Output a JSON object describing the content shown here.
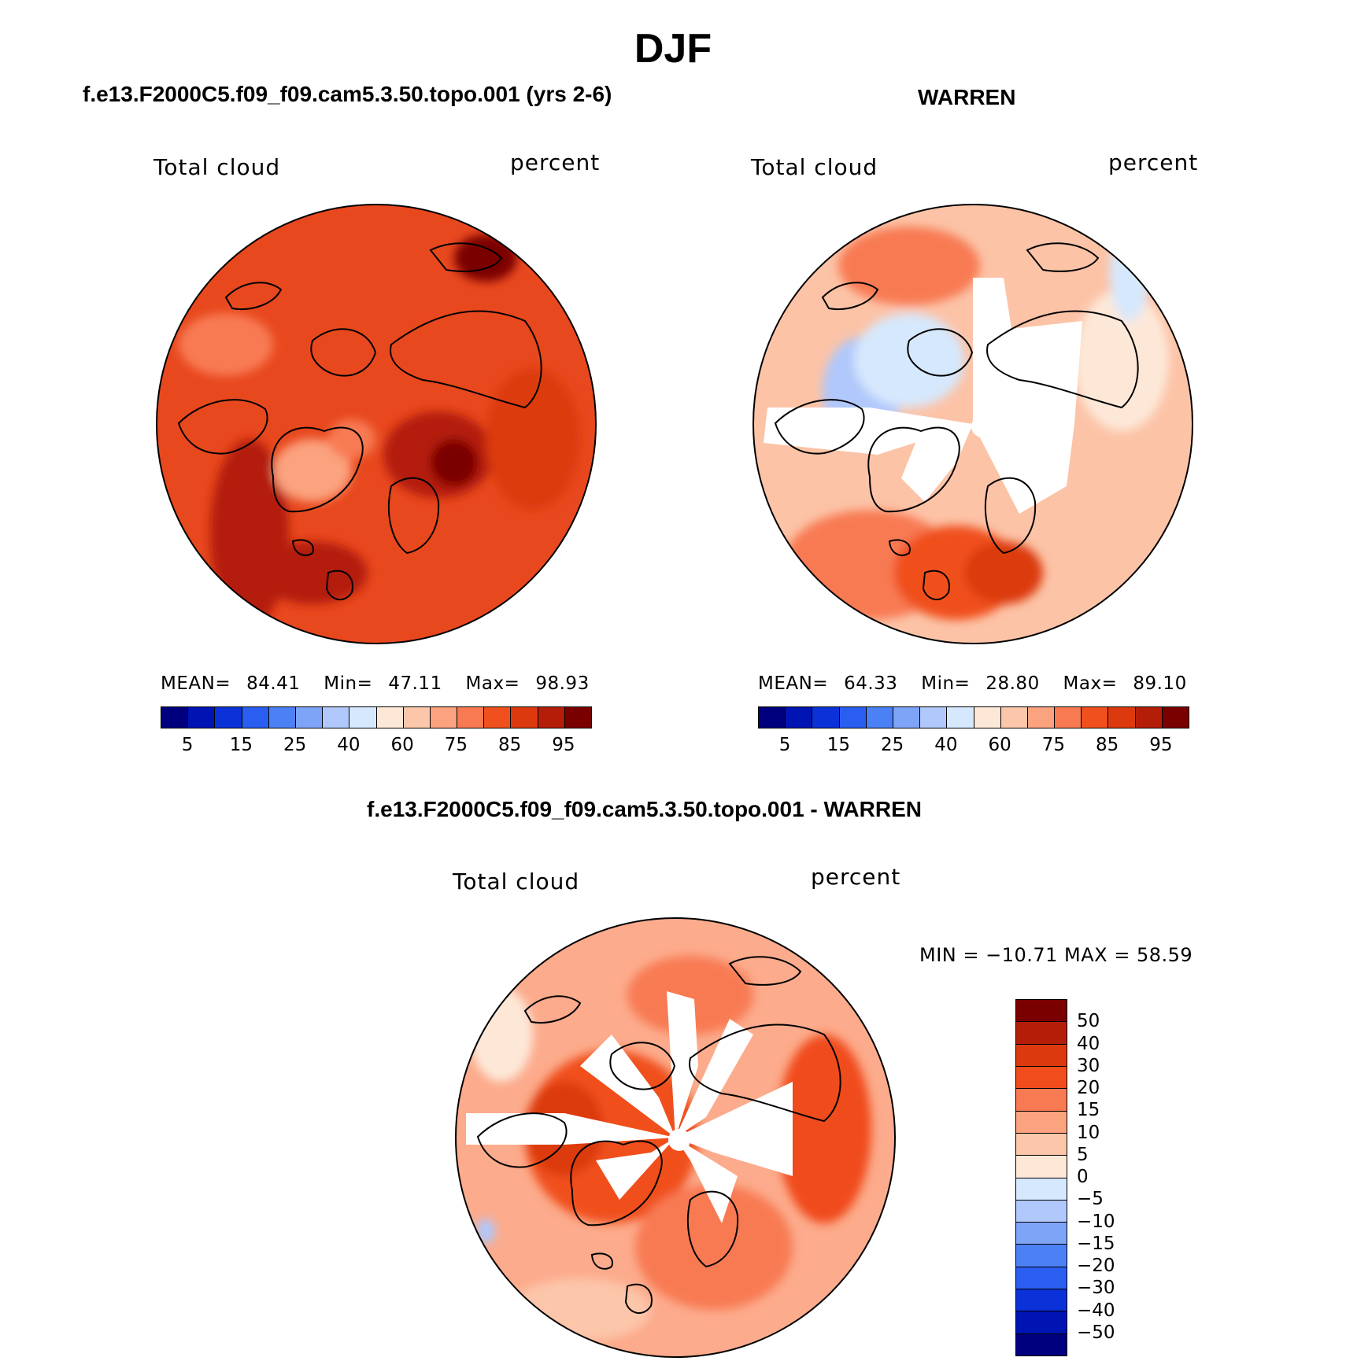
{
  "title": "DJF",
  "panels": [
    {
      "id": "model",
      "title": "f.e13.F2000C5.f09_f09.cam5.3.50.topo.001 (yrs 2-6)",
      "variable": "Total cloud",
      "units": "percent",
      "stats": {
        "mean_label": "MEAN=",
        "mean": "84.41",
        "min_label": "Min=",
        "min": "47.11",
        "max_label": "Max=",
        "max": "98.93"
      },
      "field": {
        "base": "#e8481e",
        "pattern": "model"
      }
    },
    {
      "id": "obs",
      "title": "WARREN",
      "variable": "Total cloud",
      "units": "percent",
      "stats": {
        "mean_label": "MEAN=",
        "mean": "64.33",
        "min_label": "Min=",
        "min": "28.80",
        "max_label": "Max=",
        "max": "89.10"
      },
      "field": {
        "base": "#fcc3a7",
        "pattern": "obs"
      }
    },
    {
      "id": "diff",
      "title": "f.e13.F2000C5.f09_f09.cam5.3.50.topo.001 - WARREN",
      "variable": "Total cloud",
      "units": "percent",
      "stats": {
        "text": "MIN = −10.71 MAX =   58.59"
      },
      "field": {
        "base": "#fcab8c",
        "pattern": "diff"
      }
    }
  ],
  "colorbar_abs": {
    "colors": [
      "#00007f",
      "#0014b4",
      "#0a32d8",
      "#2a5ef0",
      "#4c80f5",
      "#7ea4f8",
      "#b0c8fb",
      "#d6e8fd",
      "#fde8d8",
      "#fcc6aa",
      "#fba27e",
      "#f87a52",
      "#f0501e",
      "#dc3a0e",
      "#b41e08",
      "#7a0000"
    ],
    "tick_labels": [
      "5",
      "15",
      "25",
      "40",
      "60",
      "75",
      "85",
      "95"
    ]
  },
  "colorbar_diff": {
    "colors": [
      "#7a0000",
      "#b41e08",
      "#dc3a0e",
      "#f04c1c",
      "#f87a52",
      "#fba27e",
      "#fcc6aa",
      "#fde8d8",
      "#d6e8fd",
      "#b0c8fb",
      "#7ea4f8",
      "#4c80f5",
      "#2a5ef0",
      "#0a32d8",
      "#0014b4",
      "#00007f"
    ],
    "tick_labels": [
      "50",
      "40",
      "30",
      "20",
      "15",
      "10",
      "5",
      "0",
      "−5",
      "−10",
      "−15",
      "−20",
      "−30",
      "−40",
      "−50"
    ]
  }
}
